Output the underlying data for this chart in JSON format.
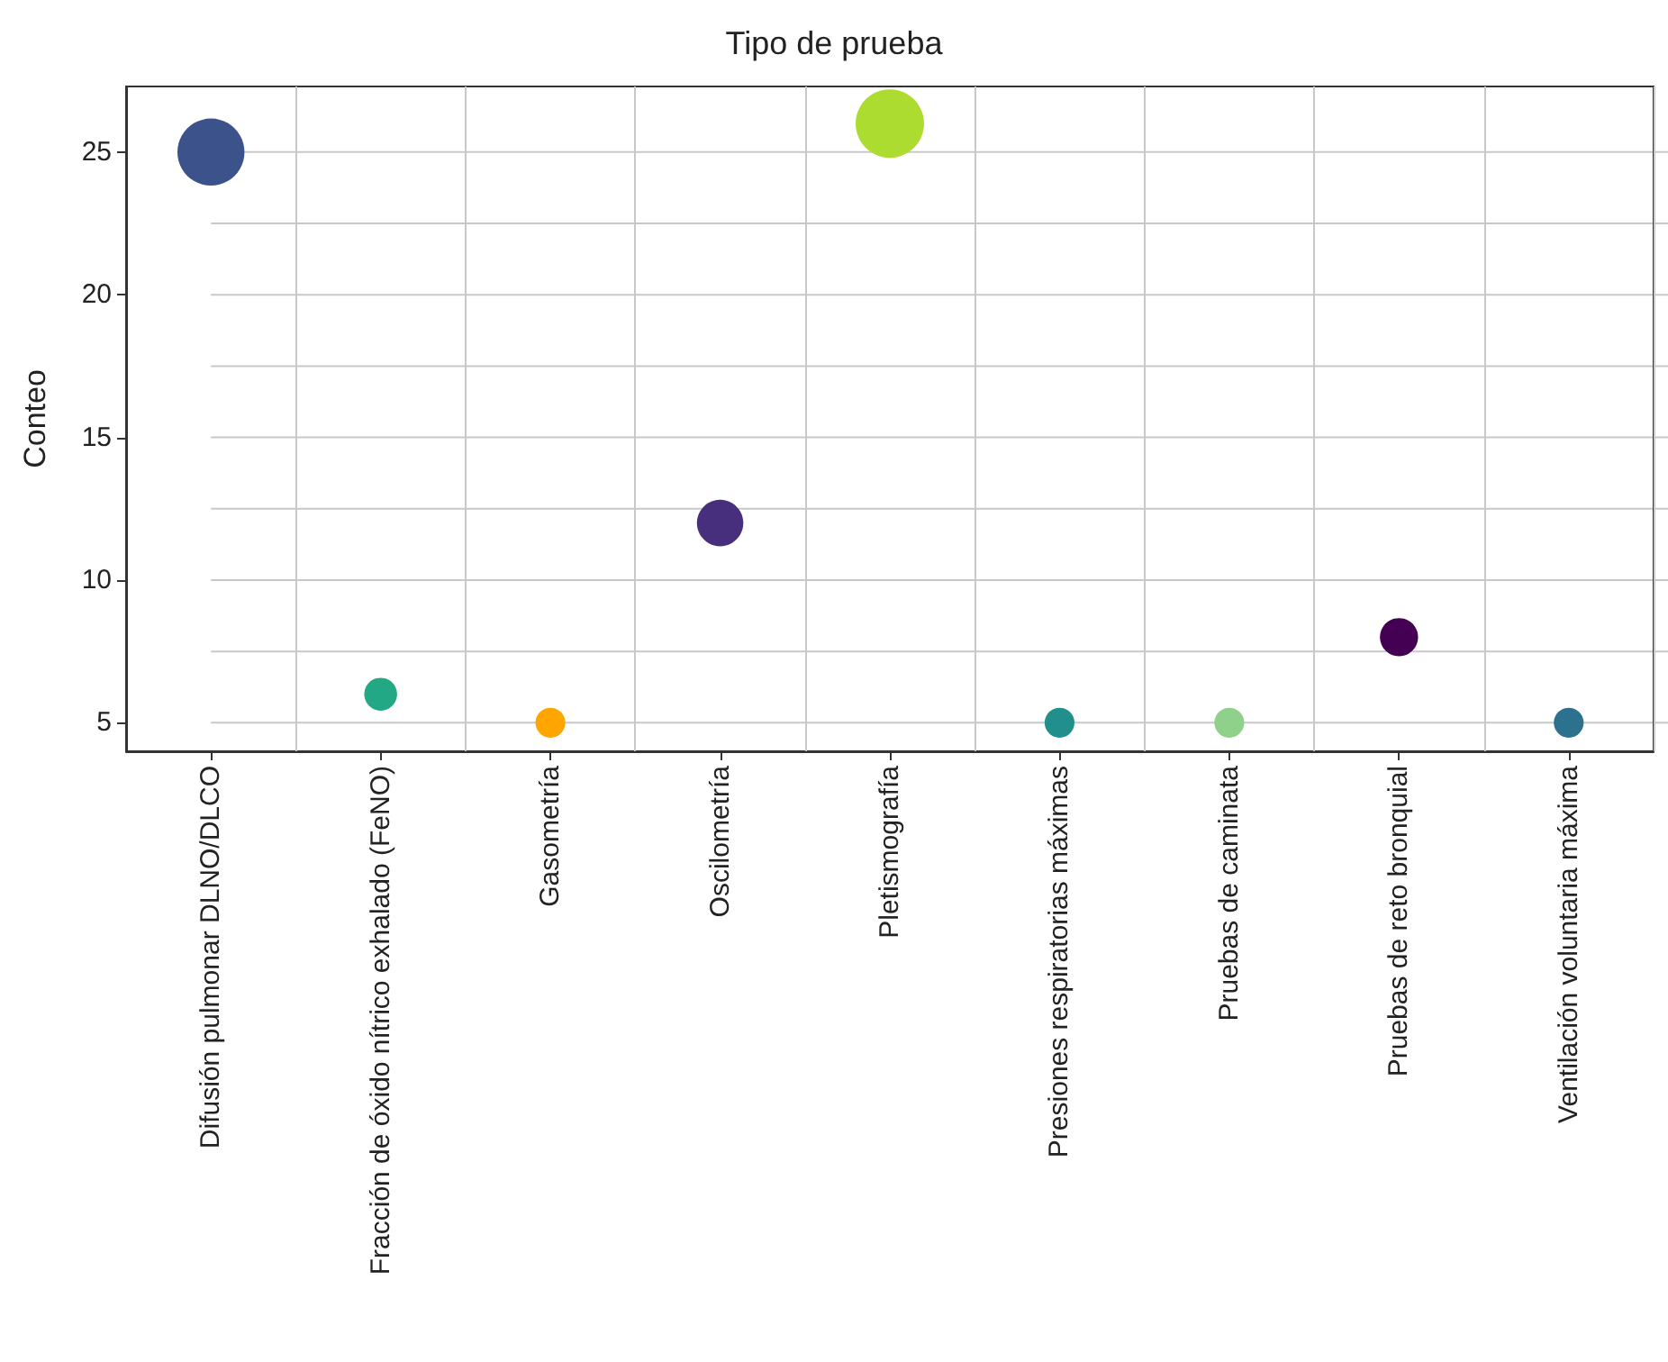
{
  "chart_data": {
    "type": "bubble",
    "title": "Tipo de prueba",
    "ylabel": "Conteo",
    "categories": [
      "Difusión pulmonar DLNO/DLCO",
      "Fracción de óxido nítrico exhalado (FeNO)",
      "Gasometría",
      "Oscilometría",
      "Pletismografía",
      "Presiones respiratorias máximas",
      "Pruebas de caminata",
      "Pruebas de reto bronquial",
      "Ventilación voluntaria máxima"
    ],
    "values": [
      25,
      6,
      5,
      12,
      26,
      5,
      5,
      8,
      5
    ],
    "sizes": [
      0.96,
      0.23,
      0.19,
      0.46,
      1,
      0.19,
      0.19,
      0.31,
      0.19
    ],
    "colors": [
      "#3b528b",
      "#22a884",
      "#ffa500",
      "#472f7d",
      "#addc30",
      "#21908d",
      "#8fd18a",
      "#440154",
      "#2c728e"
    ],
    "ylim": [
      4,
      27.3
    ],
    "yticks": [
      5,
      {
        "value": 7.5,
        "label": null
      },
      10,
      {
        "value": 12.5,
        "label": null
      },
      15,
      {
        "value": 17.5,
        "label": null
      },
      20,
      {
        "value": 22.5,
        "label": null
      },
      25
    ],
    "grid": true
  }
}
